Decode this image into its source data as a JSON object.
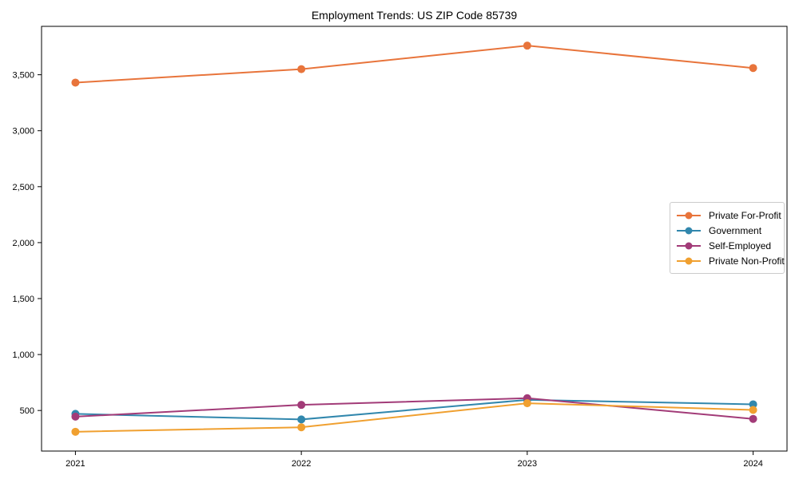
{
  "figure": {
    "title": "Employment Trends: US ZIP Code 85739"
  },
  "chart_data": {
    "type": "line",
    "title": "Employment Trends: US ZIP Code 85739",
    "xlabel": "",
    "ylabel": "",
    "categories": [
      "2021",
      "2022",
      "2023",
      "2024"
    ],
    "x": [
      2021,
      2022,
      2023,
      2024
    ],
    "series": [
      {
        "name": "Private For-Profit",
        "color": "#E8743B",
        "values": [
          3430,
          3550,
          3760,
          3560
        ]
      },
      {
        "name": "Government",
        "color": "#3187AD",
        "values": [
          470,
          420,
          595,
          555
        ]
      },
      {
        "name": "Self-Employed",
        "color": "#A23B78",
        "values": [
          445,
          550,
          610,
          425
        ]
      },
      {
        "name": "Private Non-Profit",
        "color": "#F0A030",
        "values": [
          310,
          350,
          565,
          505
        ]
      }
    ],
    "xlim": [
      2020.85,
      2024.15
    ],
    "ylim": [
      137.5,
      3932.5
    ],
    "yticks": [
      500,
      1000,
      1500,
      2000,
      2500,
      3000,
      3500
    ],
    "ytick_labels": [
      "500",
      "1,000",
      "1,500",
      "2,000",
      "2,500",
      "3,000",
      "3,500"
    ],
    "grid": false,
    "legend_position": "center-right",
    "marker": "circle",
    "axis_color": "#000000",
    "background": "#ffffff"
  }
}
